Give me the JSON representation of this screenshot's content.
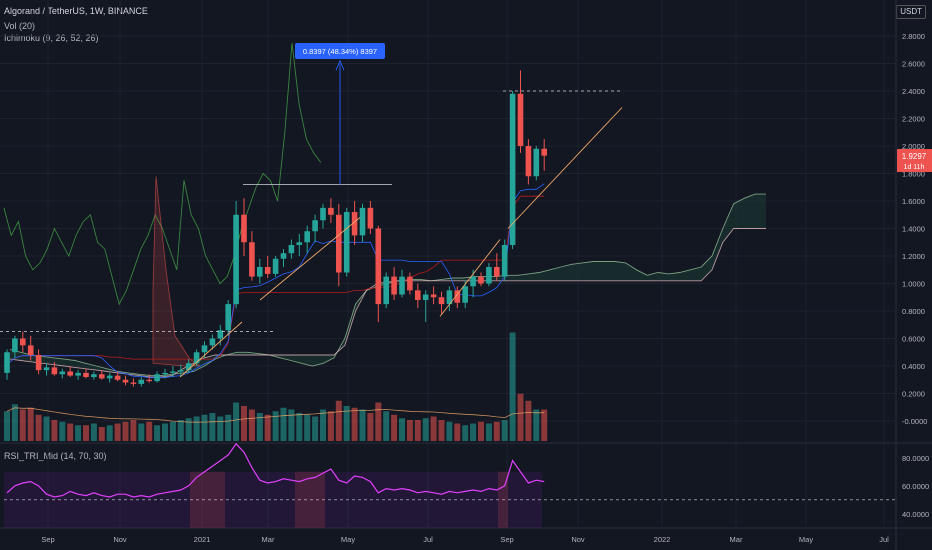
{
  "header": {
    "title": "Algorand / TetherUS, 1W, BINANCE",
    "vol": "Vol (20)",
    "ichimoku": "Ichimoku (9, 26, 52, 26)",
    "rsi": "RSI_TRI_Mid (14, 70, 30)",
    "currency": "USDT"
  },
  "price_label": {
    "value": "1.9297",
    "sub": "1d 11h"
  },
  "measure_label": "0.8397 (48.34%) 8397",
  "colors": {
    "up": "#26a69a",
    "down": "#ef5350",
    "bg": "#131722",
    "text": "#b2b5be",
    "rsi": "#e040fb",
    "trend": "#f0a868",
    "measure": "#2962ff"
  },
  "chart_data": [
    {
      "type": "candlestick",
      "title": "Algorand / TetherUS, 1W, BINANCE",
      "xticks": [
        "Sep",
        "Nov",
        "2021",
        "Mar",
        "May",
        "Jul",
        "Sep",
        "Nov",
        "2022",
        "Mar",
        "May",
        "Jul"
      ],
      "yticks": [
        "2.8000",
        "2.6000",
        "2.4000",
        "2.2000",
        "2.0000",
        "1.8000",
        "1.6000",
        "1.4000",
        "1.2000",
        "1.0000",
        "0.8000",
        "0.6000",
        "0.4000",
        "0.2000",
        "-0.0000"
      ],
      "ylim": [
        -0.05,
        2.95
      ],
      "candles": [
        {
          "o": 0.35,
          "h": 0.52,
          "l": 0.3,
          "c": 0.5
        },
        {
          "o": 0.5,
          "h": 0.62,
          "l": 0.46,
          "c": 0.6
        },
        {
          "o": 0.6,
          "h": 0.65,
          "l": 0.5,
          "c": 0.55
        },
        {
          "o": 0.55,
          "h": 0.62,
          "l": 0.44,
          "c": 0.48
        },
        {
          "o": 0.48,
          "h": 0.52,
          "l": 0.34,
          "c": 0.37
        },
        {
          "o": 0.37,
          "h": 0.42,
          "l": 0.33,
          "c": 0.39
        },
        {
          "o": 0.39,
          "h": 0.43,
          "l": 0.33,
          "c": 0.34
        },
        {
          "o": 0.34,
          "h": 0.38,
          "l": 0.31,
          "c": 0.36
        },
        {
          "o": 0.36,
          "h": 0.4,
          "l": 0.32,
          "c": 0.33
        },
        {
          "o": 0.33,
          "h": 0.37,
          "l": 0.3,
          "c": 0.35
        },
        {
          "o": 0.35,
          "h": 0.38,
          "l": 0.31,
          "c": 0.32
        },
        {
          "o": 0.32,
          "h": 0.36,
          "l": 0.3,
          "c": 0.34
        },
        {
          "o": 0.34,
          "h": 0.37,
          "l": 0.3,
          "c": 0.31
        },
        {
          "o": 0.31,
          "h": 0.35,
          "l": 0.28,
          "c": 0.33
        },
        {
          "o": 0.33,
          "h": 0.36,
          "l": 0.29,
          "c": 0.3
        },
        {
          "o": 0.3,
          "h": 0.33,
          "l": 0.26,
          "c": 0.28
        },
        {
          "o": 0.28,
          "h": 0.31,
          "l": 0.25,
          "c": 0.27
        },
        {
          "o": 0.27,
          "h": 0.32,
          "l": 0.25,
          "c": 0.3
        },
        {
          "o": 0.3,
          "h": 0.34,
          "l": 0.28,
          "c": 0.29
        },
        {
          "o": 0.29,
          "h": 0.36,
          "l": 0.28,
          "c": 0.34
        },
        {
          "o": 0.34,
          "h": 0.38,
          "l": 0.31,
          "c": 0.35
        },
        {
          "o": 0.35,
          "h": 0.4,
          "l": 0.32,
          "c": 0.36
        },
        {
          "o": 0.36,
          "h": 0.41,
          "l": 0.33,
          "c": 0.37
        },
        {
          "o": 0.37,
          "h": 0.45,
          "l": 0.35,
          "c": 0.42
        },
        {
          "o": 0.42,
          "h": 0.52,
          "l": 0.4,
          "c": 0.5
        },
        {
          "o": 0.5,
          "h": 0.58,
          "l": 0.46,
          "c": 0.55
        },
        {
          "o": 0.55,
          "h": 0.63,
          "l": 0.52,
          "c": 0.6
        },
        {
          "o": 0.6,
          "h": 0.7,
          "l": 0.55,
          "c": 0.66
        },
        {
          "o": 0.66,
          "h": 0.88,
          "l": 0.62,
          "c": 0.85
        },
        {
          "o": 0.85,
          "h": 1.6,
          "l": 0.82,
          "c": 1.5
        },
        {
          "o": 1.5,
          "h": 1.62,
          "l": 1.2,
          "c": 1.3
        },
        {
          "o": 1.3,
          "h": 1.38,
          "l": 1.02,
          "c": 1.05
        },
        {
          "o": 1.05,
          "h": 1.18,
          "l": 1.0,
          "c": 1.12
        },
        {
          "o": 1.12,
          "h": 1.2,
          "l": 1.04,
          "c": 1.07
        },
        {
          "o": 1.07,
          "h": 1.2,
          "l": 1.05,
          "c": 1.18
        },
        {
          "o": 1.18,
          "h": 1.25,
          "l": 1.12,
          "c": 1.22
        },
        {
          "o": 1.22,
          "h": 1.32,
          "l": 1.18,
          "c": 1.28
        },
        {
          "o": 1.28,
          "h": 1.36,
          "l": 1.2,
          "c": 1.3
        },
        {
          "o": 1.3,
          "h": 1.42,
          "l": 1.22,
          "c": 1.38
        },
        {
          "o": 1.38,
          "h": 1.5,
          "l": 1.3,
          "c": 1.46
        },
        {
          "o": 1.46,
          "h": 1.58,
          "l": 1.4,
          "c": 1.55
        },
        {
          "o": 1.55,
          "h": 1.62,
          "l": 1.44,
          "c": 1.5
        },
        {
          "o": 1.5,
          "h": 1.58,
          "l": 0.98,
          "c": 1.08
        },
        {
          "o": 1.08,
          "h": 1.55,
          "l": 1.05,
          "c": 1.52
        },
        {
          "o": 1.52,
          "h": 1.6,
          "l": 1.28,
          "c": 1.35
        },
        {
          "o": 1.35,
          "h": 1.58,
          "l": 1.3,
          "c": 1.55
        },
        {
          "o": 1.55,
          "h": 1.6,
          "l": 1.36,
          "c": 1.4
        },
        {
          "o": 1.4,
          "h": 1.42,
          "l": 0.72,
          "c": 0.85
        },
        {
          "o": 0.85,
          "h": 1.08,
          "l": 0.82,
          "c": 1.05
        },
        {
          "o": 1.05,
          "h": 1.12,
          "l": 0.88,
          "c": 0.92
        },
        {
          "o": 0.92,
          "h": 1.1,
          "l": 0.9,
          "c": 1.05
        },
        {
          "o": 1.05,
          "h": 1.08,
          "l": 0.92,
          "c": 0.95
        },
        {
          "o": 0.95,
          "h": 1.0,
          "l": 0.82,
          "c": 0.88
        },
        {
          "o": 0.88,
          "h": 0.95,
          "l": 0.72,
          "c": 0.92
        },
        {
          "o": 0.92,
          "h": 0.98,
          "l": 0.85,
          "c": 0.9
        },
        {
          "o": 0.9,
          "h": 0.94,
          "l": 0.78,
          "c": 0.85
        },
        {
          "o": 0.85,
          "h": 0.98,
          "l": 0.8,
          "c": 0.95
        },
        {
          "o": 0.95,
          "h": 0.98,
          "l": 0.82,
          "c": 0.86
        },
        {
          "o": 0.86,
          "h": 1.02,
          "l": 0.82,
          "c": 0.98
        },
        {
          "o": 0.98,
          "h": 1.1,
          "l": 0.9,
          "c": 1.05
        },
        {
          "o": 1.05,
          "h": 1.08,
          "l": 0.98,
          "c": 1.0
        },
        {
          "o": 1.0,
          "h": 1.15,
          "l": 0.98,
          "c": 1.12
        },
        {
          "o": 1.12,
          "h": 1.22,
          "l": 1.02,
          "c": 1.05
        },
        {
          "o": 1.05,
          "h": 1.32,
          "l": 1.02,
          "c": 1.28
        },
        {
          "o": 1.28,
          "h": 2.4,
          "l": 1.25,
          "c": 2.38
        },
        {
          "o": 2.38,
          "h": 2.55,
          "l": 1.95,
          "c": 2.0
        },
        {
          "o": 2.0,
          "h": 2.05,
          "l": 1.72,
          "c": 1.78
        },
        {
          "o": 1.78,
          "h": 2.0,
          "l": 1.75,
          "c": 1.98
        },
        {
          "o": 1.98,
          "h": 2.05,
          "l": 1.82,
          "c": 1.93
        }
      ],
      "volume": [
        0.17,
        0.21,
        0.18,
        0.19,
        0.15,
        0.14,
        0.12,
        0.11,
        0.1,
        0.09,
        0.09,
        0.1,
        0.08,
        0.09,
        0.1,
        0.11,
        0.12,
        0.1,
        0.11,
        0.09,
        0.1,
        0.11,
        0.12,
        0.13,
        0.14,
        0.15,
        0.16,
        0.14,
        0.15,
        0.22,
        0.2,
        0.18,
        0.16,
        0.15,
        0.17,
        0.19,
        0.18,
        0.16,
        0.15,
        0.14,
        0.18,
        0.17,
        0.23,
        0.2,
        0.19,
        0.18,
        0.16,
        0.22,
        0.17,
        0.15,
        0.13,
        0.12,
        0.12,
        0.13,
        0.14,
        0.12,
        0.11,
        0.1,
        0.09,
        0.1,
        0.11,
        0.1,
        0.11,
        0.12,
        0.62,
        0.27,
        0.23,
        0.18,
        0.18
      ]
    },
    {
      "type": "line",
      "title": "RSI_TRI_Mid (14, 70, 30)",
      "yticks": [
        "80.0000",
        "60.0000",
        "40.0000"
      ],
      "ylim": [
        32,
        92
      ],
      "bands": {
        "upper": 70,
        "mid": 50,
        "lower": 30
      },
      "values": [
        55,
        60,
        62,
        63,
        60,
        54,
        52,
        53,
        56,
        54,
        53,
        55,
        53,
        52,
        54,
        54,
        52,
        53,
        52,
        54,
        55,
        56,
        57,
        60,
        66,
        70,
        74,
        78,
        82,
        90,
        84,
        73,
        64,
        62,
        63,
        65,
        64,
        63,
        65,
        66,
        69,
        72,
        64,
        62,
        67,
        66,
        63,
        55,
        58,
        57,
        58,
        57,
        55,
        56,
        55,
        54,
        56,
        55,
        56,
        57,
        56,
        58,
        57,
        60,
        78,
        70,
        62,
        64,
        63
      ]
    }
  ]
}
